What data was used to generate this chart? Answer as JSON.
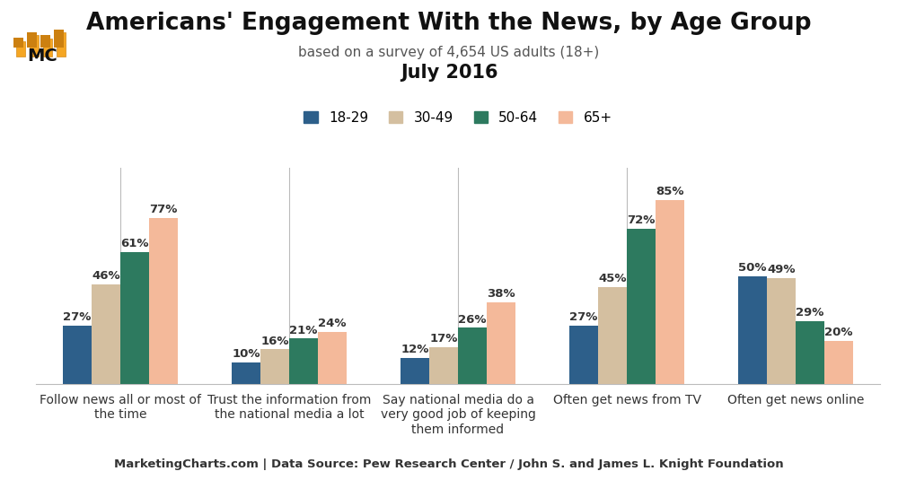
{
  "title": "Americans' Engagement With the News, by Age Group",
  "subtitle": "based on a survey of 4,654 US adults (18+)",
  "date_label": "July 2016",
  "footer": "MarketingCharts.com | Data Source: Pew Research Center / John S. and James L. Knight Foundation",
  "categories": [
    "Follow news all or most of\nthe time",
    "Trust the information from\nthe national media a lot",
    "Say national media do a\nvery good job of keeping\nthem informed",
    "Often get news from TV",
    "Often get news online"
  ],
  "age_groups": [
    "18-29",
    "30-49",
    "50-64",
    "65+"
  ],
  "values": [
    [
      27,
      46,
      61,
      77
    ],
    [
      10,
      16,
      21,
      24
    ],
    [
      12,
      17,
      26,
      38
    ],
    [
      27,
      45,
      72,
      85
    ],
    [
      50,
      49,
      29,
      20
    ]
  ],
  "colors": [
    "#2d5f8a",
    "#d4bfa0",
    "#2d7a5f",
    "#f4b99a"
  ],
  "background_color": "#ffffff",
  "plot_background": "#ffffff",
  "bar_width": 0.17,
  "ylim": [
    0,
    100
  ],
  "title_fontsize": 19,
  "subtitle_fontsize": 11,
  "date_fontsize": 15,
  "tick_fontsize": 10,
  "legend_fontsize": 11,
  "value_fontsize": 9.5,
  "footer_fontsize": 9.5,
  "footer_bg": "#cccccc"
}
